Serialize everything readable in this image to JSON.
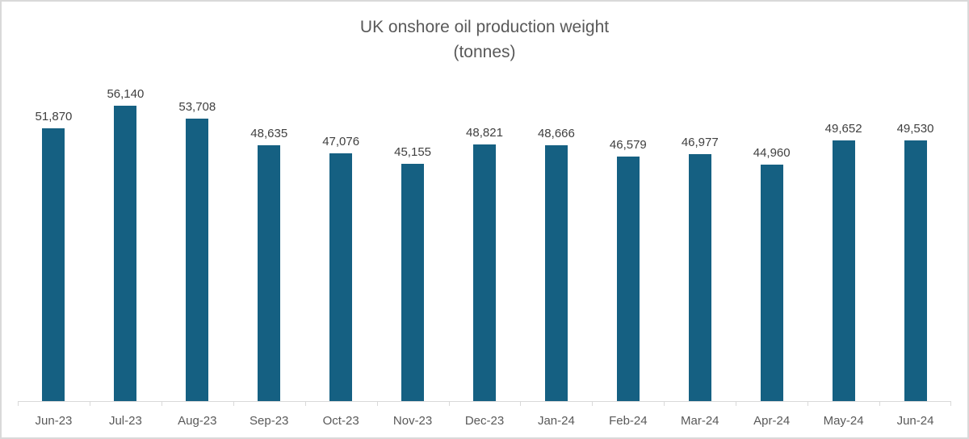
{
  "chart": {
    "title_line1": "UK onshore oil production weight",
    "title_line2": "(tonnes)"
  },
  "chart_data": {
    "type": "bar",
    "title": "UK onshore oil production weight (tonnes)",
    "categories": [
      "Jun-23",
      "Jul-23",
      "Aug-23",
      "Sep-23",
      "Oct-23",
      "Nov-23",
      "Dec-23",
      "Jan-24",
      "Feb-24",
      "Mar-24",
      "Apr-24",
      "May-24",
      "Jun-24"
    ],
    "values": [
      51870,
      56140,
      53708,
      48635,
      47076,
      45155,
      48821,
      48666,
      46579,
      46977,
      44960,
      49652,
      49530
    ],
    "value_labels": [
      "51,870",
      "56,140",
      "53,708",
      "48,635",
      "47,076",
      "45,155",
      "48,821",
      "48,666",
      "46,579",
      "46,977",
      "44,960",
      "49,652",
      "49,530"
    ],
    "xlabel": "",
    "ylabel": "",
    "ylim": [
      0,
      61400
    ],
    "grid": false,
    "legend": false,
    "data_labels": true,
    "bar_color": "#156082",
    "value_label_color": "#404040",
    "axis_text_color": "#595959",
    "axis_line_color": "#d9d9d9"
  }
}
